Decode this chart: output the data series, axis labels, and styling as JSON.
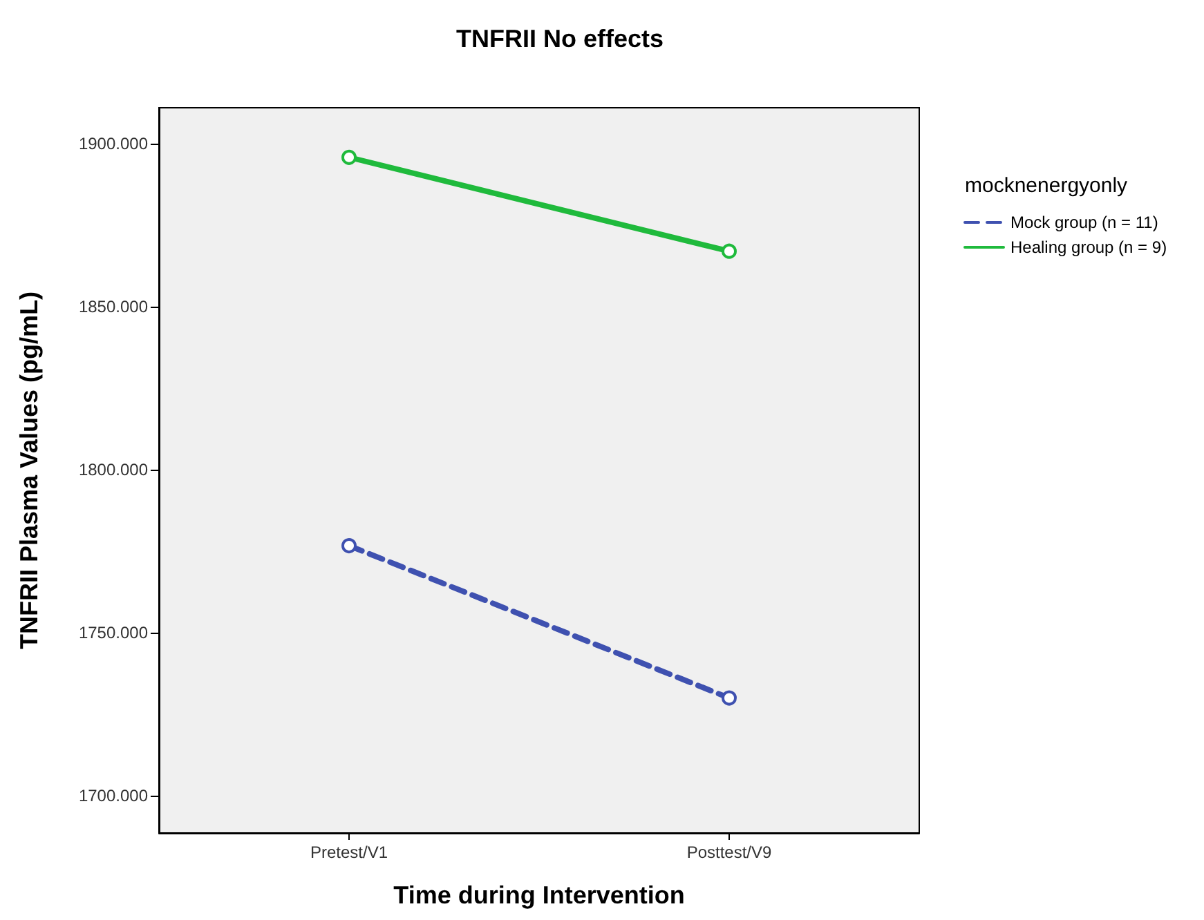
{
  "chart_data": {
    "type": "line",
    "title": "TNFRII No effects",
    "xlabel": "Time during Intervention",
    "ylabel": "TNFRII Plasma Values (pg/mL)",
    "legend_title": "mocknenergyonly",
    "categories": [
      "Pretest/V1",
      "Posttest/V9"
    ],
    "series": [
      {
        "name": "Mock group (n = 11)",
        "color": "#3f51b0",
        "values": [
          1776.7,
          1730
        ],
        "line_style": "dashed"
      },
      {
        "name": "Healing group (n = 9)",
        "color": "#1fba3c",
        "values": [
          1895.8,
          1867
        ],
        "line_style": "solid"
      }
    ],
    "ylim": [
      1688.6,
      1911
    ],
    "yticks": [
      {
        "value": 1700,
        "label": "1700.000"
      },
      {
        "value": 1750,
        "label": "1750.000"
      },
      {
        "value": 1800,
        "label": "1800.000"
      },
      {
        "value": 1850,
        "label": "1850.000"
      },
      {
        "value": 1900,
        "label": "1900.000"
      }
    ],
    "grid": false,
    "legend": "right",
    "marker": "circle"
  }
}
